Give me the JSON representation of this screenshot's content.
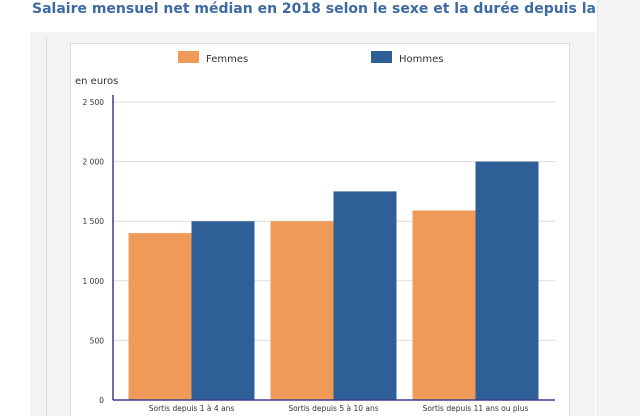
{
  "page": {
    "title": "Salaire mensuel net médian en 2018 selon le sexe et la durée depuis la"
  },
  "colors": {
    "title": "#3d6aa3",
    "femmes": "#f09a5a",
    "hommes": "#2e6097",
    "axis": "#3a3f8f",
    "grid": "#dddddd"
  },
  "chart_data": {
    "type": "bar",
    "title": "",
    "ylabel": "en euros",
    "xlabel": "",
    "categories": [
      "Sortis depuis 1 à 4 ans",
      "Sortis depuis 5 à 10 ans",
      "Sortis depuis 11 ans ou plus"
    ],
    "series": [
      {
        "name": "Femmes",
        "color": "#f09a5a",
        "values": [
          1400,
          1500,
          1590
        ]
      },
      {
        "name": "Hommes",
        "color": "#2e6097",
        "values": [
          1500,
          1750,
          2000
        ]
      }
    ],
    "ylim": [
      0,
      2500
    ],
    "yticks": [
      0,
      500,
      1000,
      1500,
      2000,
      2500
    ],
    "ytick_labels": [
      "0",
      "500",
      "1 000",
      "1 500",
      "2 000",
      "2 500"
    ],
    "grid": true,
    "legend_position": "top"
  }
}
